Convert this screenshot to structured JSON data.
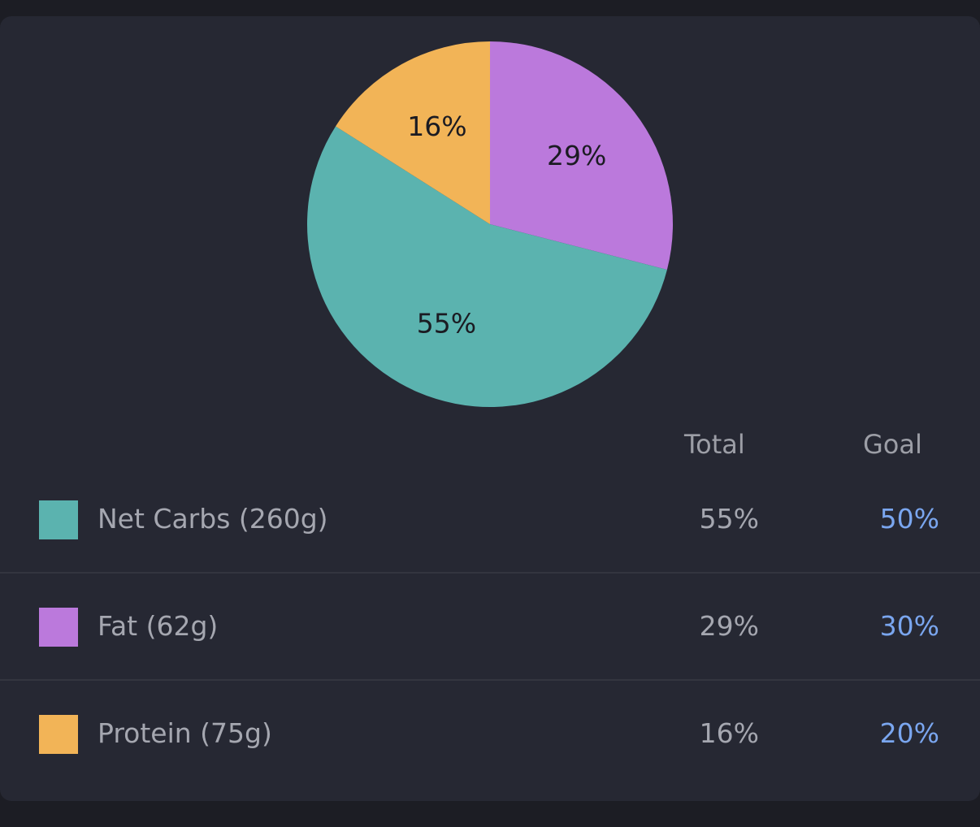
{
  "chart_data": {
    "type": "pie",
    "slices": [
      {
        "label": "Fat",
        "value": 29,
        "text": "29%",
        "color": "#bb79dc"
      },
      {
        "label": "Net Carbs",
        "value": 55,
        "text": "55%",
        "color": "#5bb3af"
      },
      {
        "label": "Protein",
        "value": 16,
        "text": "16%",
        "color": "#f2b457"
      }
    ]
  },
  "table": {
    "header_total": "Total",
    "header_goal": "Goal",
    "rows": [
      {
        "name": "Net Carbs (260g)",
        "total": "55%",
        "goal": "50%",
        "color": "#5bb3af"
      },
      {
        "name": "Fat (62g)",
        "total": "29%",
        "goal": "30%",
        "color": "#bb79dc"
      },
      {
        "name": "Protein (75g)",
        "total": "16%",
        "goal": "20%",
        "color": "#f2b457"
      }
    ]
  },
  "colors": {
    "background": "#1c1d24",
    "card": "#262833",
    "goal_text": "#7aa6ef"
  }
}
